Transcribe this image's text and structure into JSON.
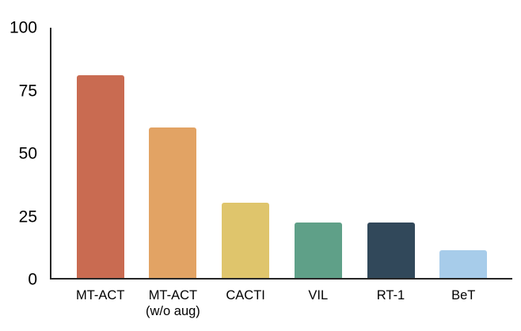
{
  "chart_data": {
    "type": "bar",
    "title": "",
    "xlabel": "",
    "ylabel": "",
    "categories": [
      "MT-ACT",
      "MT-ACT\n(w/o aug)",
      "CACTI",
      "VIL",
      "RT-1",
      "BeT"
    ],
    "values": [
      81,
      60,
      30,
      22,
      22,
      11
    ],
    "colors": [
      "#C96B51",
      "#E2A364",
      "#DFC56C",
      "#5FA088",
      "#31485A",
      "#A7CCEA"
    ],
    "ylim": [
      0,
      100
    ],
    "yticks": [
      0,
      25,
      50,
      75,
      100
    ],
    "grid": false,
    "legend": "none",
    "axis_color": "#262626",
    "background_color": "#ffffff"
  }
}
